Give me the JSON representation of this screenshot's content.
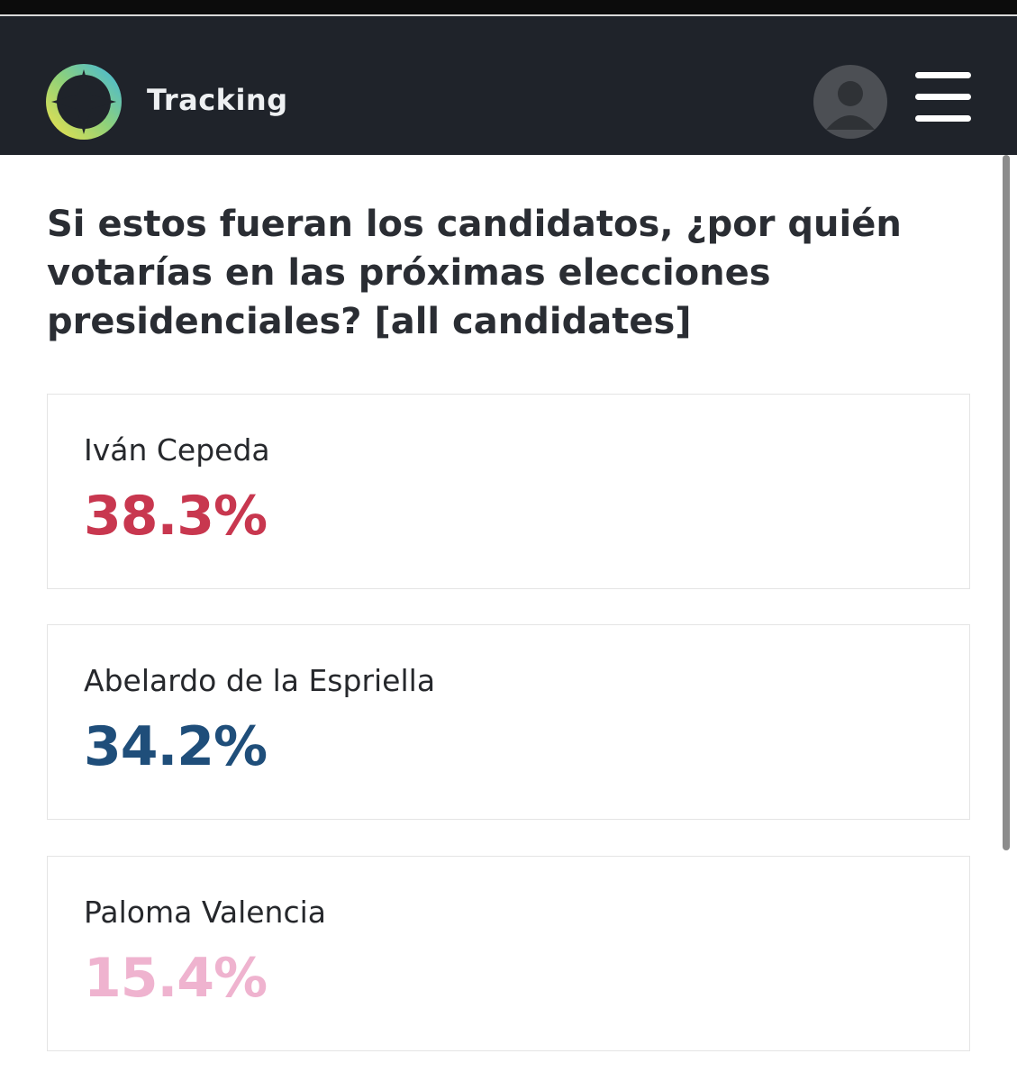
{
  "header": {
    "title": "Tracking"
  },
  "question": "Si estos fueran los candidatos, ¿por quién votarías en las próximas elecciones presidenciales? [all candidates]",
  "cards": [
    {
      "name": "Iván Cepeda",
      "value": "38.3%",
      "color": "#c8374f"
    },
    {
      "name": "Abelardo de la Espriella",
      "value": "34.2%",
      "color": "#1f4e7a"
    },
    {
      "name": "Paloma Valencia",
      "value": "15.4%",
      "color": "#efb3cf"
    }
  ]
}
